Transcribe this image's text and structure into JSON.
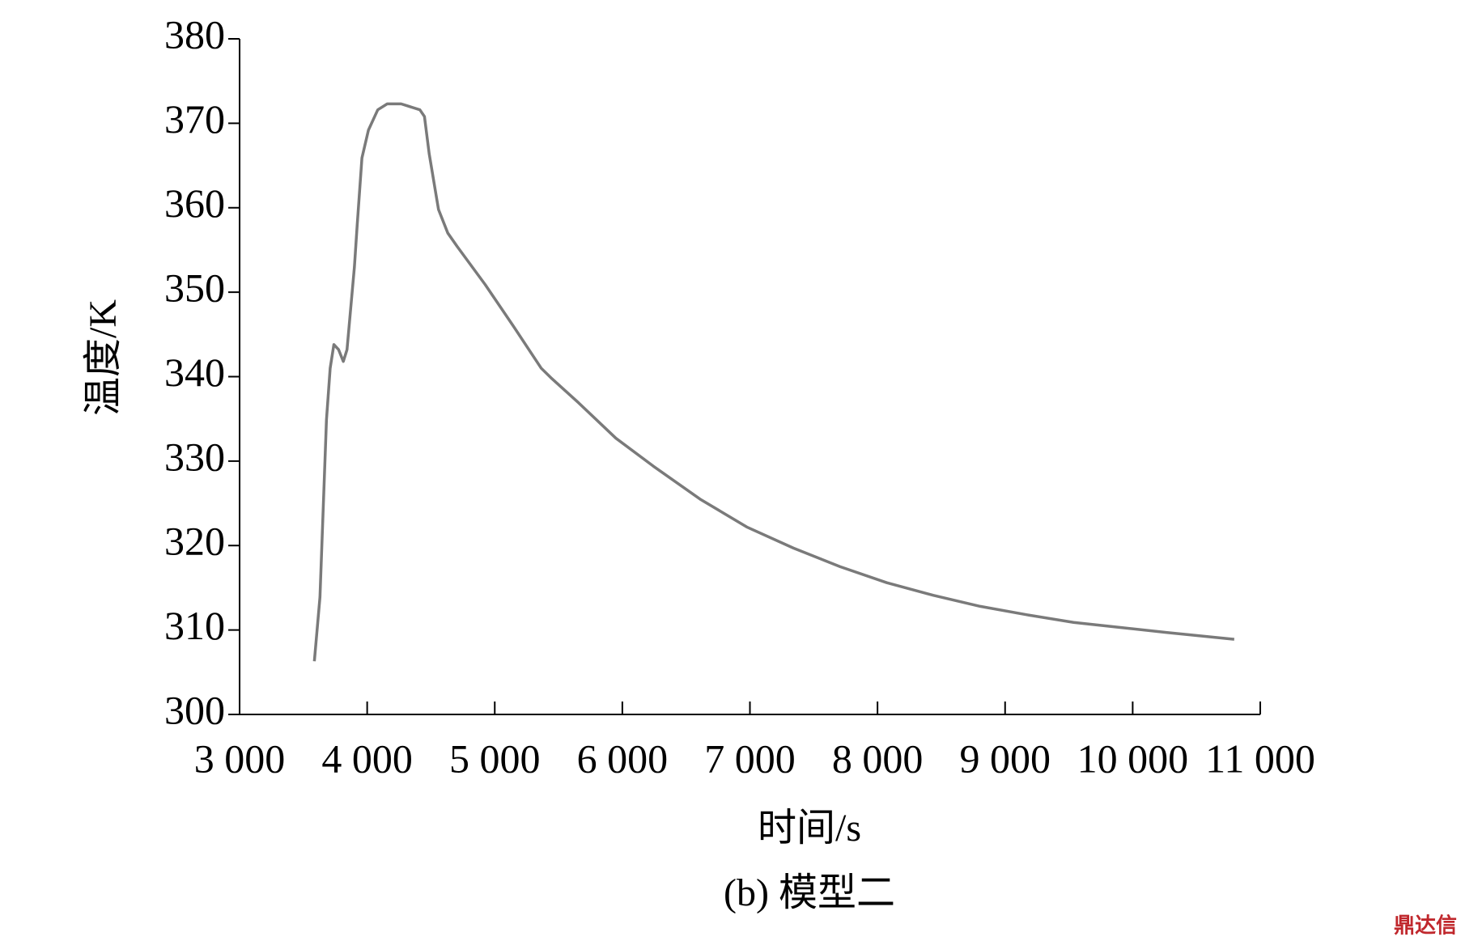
{
  "chart_data": {
    "type": "line",
    "x_label": "时间/s",
    "y_label": "温度/K",
    "caption": "(b) 模型二",
    "watermark": "鼎达信",
    "x": [
      3586,
      3630,
      3681,
      3710,
      3739,
      3776,
      3813,
      3842,
      3900,
      3922,
      3959,
      4010,
      4083,
      4157,
      4266,
      4413,
      4449,
      4486,
      4559,
      4632,
      4706,
      4925,
      5145,
      5364,
      5438,
      5657,
      5950,
      6243,
      6609,
      6975,
      7341,
      7707,
      8073,
      8439,
      8805,
      9171,
      9537,
      9903,
      10269,
      10796
    ],
    "series": [
      {
        "color": "#7a7a7a",
        "values": [
          306.3,
          313.9,
          334.9,
          341,
          343.8,
          343.2,
          341.8,
          343.2,
          353,
          358,
          365.9,
          369.2,
          371.6,
          372.3,
          372.3,
          371.6,
          370.8,
          366.4,
          359.8,
          357,
          355.4,
          350.9,
          346,
          341,
          339.9,
          336.9,
          332.7,
          329.4,
          325.5,
          322.2,
          319.7,
          317.5,
          315.6,
          314.1,
          312.8,
          311.8,
          310.9,
          310.3,
          309.7,
          308.9
        ]
      }
    ],
    "xlim": [
      3000,
      11000
    ],
    "xticks": [
      {
        "value": 3000,
        "label": "3 000"
      },
      {
        "value": 4000,
        "label": "4 000"
      },
      {
        "value": 5000,
        "label": "5 000"
      },
      {
        "value": 6000,
        "label": "6 000"
      },
      {
        "value": 7000,
        "label": "7 000"
      },
      {
        "value": 8000,
        "label": "8 000"
      },
      {
        "value": 9000,
        "label": "9 000"
      },
      {
        "value": 10000,
        "label": "10 000"
      },
      {
        "value": 11000,
        "label": "11 000"
      }
    ],
    "ylim": [
      300,
      380
    ],
    "yticks": [
      300,
      310,
      320,
      330,
      340,
      350,
      360,
      370,
      380
    ],
    "grid": false
  }
}
